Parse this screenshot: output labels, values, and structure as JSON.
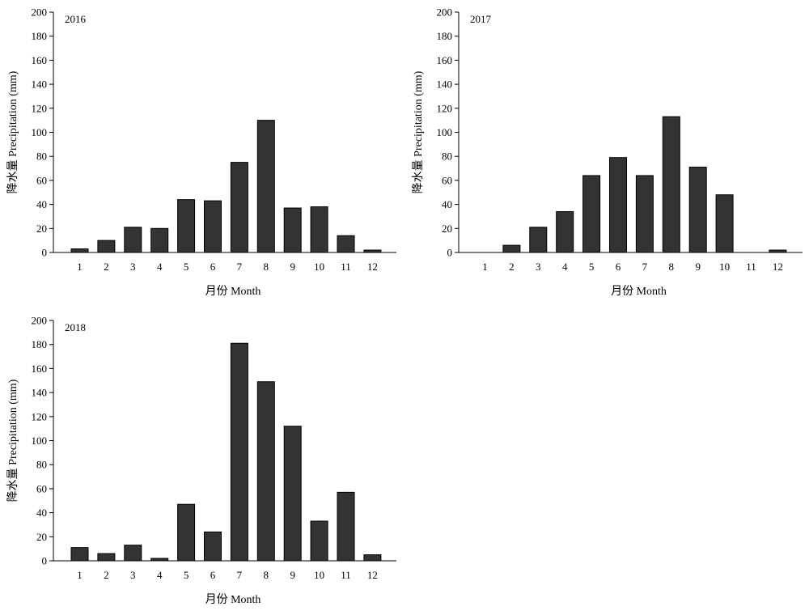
{
  "chart_data": [
    {
      "type": "bar",
      "annotation": "2016",
      "categories": [
        "1",
        "2",
        "3",
        "4",
        "5",
        "6",
        "7",
        "8",
        "9",
        "10",
        "11",
        "12"
      ],
      "values": [
        3,
        10,
        21,
        20,
        44,
        43,
        75,
        110,
        37,
        38,
        14,
        2
      ],
      "xlabel": "月份 Month",
      "ylabel": "降水量 Precipitation (mm)",
      "ylim": [
        0,
        200
      ],
      "yticks": [
        0,
        20,
        40,
        60,
        80,
        100,
        120,
        140,
        160,
        180,
        200
      ],
      "bar_color": "#333333",
      "grid": false
    },
    {
      "type": "bar",
      "annotation": "2017",
      "categories": [
        "1",
        "2",
        "3",
        "4",
        "5",
        "6",
        "7",
        "8",
        "9",
        "10",
        "11",
        "12"
      ],
      "values": [
        0,
        6,
        21,
        34,
        64,
        79,
        64,
        113,
        71,
        48,
        0,
        2
      ],
      "xlabel": "月份 Month",
      "ylabel": "降水量 Precipitation (mm)",
      "ylim": [
        0,
        200
      ],
      "yticks": [
        0,
        20,
        40,
        60,
        80,
        100,
        120,
        140,
        160,
        180,
        200
      ],
      "bar_color": "#333333",
      "grid": false
    },
    {
      "type": "bar",
      "annotation": "2018",
      "categories": [
        "1",
        "2",
        "3",
        "4",
        "5",
        "6",
        "7",
        "8",
        "9",
        "10",
        "11",
        "12"
      ],
      "values": [
        11,
        6,
        13,
        2,
        47,
        24,
        181,
        149,
        112,
        33,
        57,
        5
      ],
      "xlabel": "月份 Month",
      "ylabel": "降水量 Precipitation (mm)",
      "ylim": [
        0,
        200
      ],
      "yticks": [
        0,
        20,
        40,
        60,
        80,
        100,
        120,
        140,
        160,
        180,
        200
      ],
      "bar_color": "#333333",
      "grid": false
    }
  ]
}
